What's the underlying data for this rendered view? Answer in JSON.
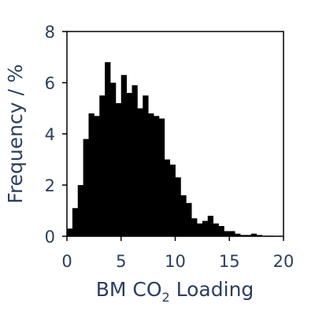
{
  "chart_data": {
    "type": "bar",
    "subtype": "histogram",
    "title": "",
    "xlabel_main": "BM CO",
    "xlabel_sub": "2",
    "xlabel_tail": " Loading",
    "ylabel": "Frequency / %",
    "xlim": [
      0,
      20
    ],
    "ylim": [
      0,
      8
    ],
    "x_ticks": [
      0,
      5,
      10,
      15,
      20
    ],
    "y_ticks": [
      0,
      2,
      4,
      6,
      8
    ],
    "bin_width": 0.5,
    "bin_starts": [
      0,
      0.5,
      1,
      1.5,
      2,
      2.5,
      3,
      3.5,
      4,
      4.5,
      5,
      5.5,
      6,
      6.5,
      7,
      7.5,
      8,
      8.5,
      9,
      9.5,
      10,
      10.5,
      11,
      11.5,
      12,
      12.5,
      13,
      13.5,
      14,
      14.5,
      15,
      15.5,
      16,
      16.5,
      17,
      17.5,
      18,
      18.5,
      19,
      19.5
    ],
    "values": [
      0.3,
      1.1,
      2.0,
      3.8,
      4.8,
      4.7,
      5.5,
      6.8,
      6.0,
      5.2,
      6.3,
      5.6,
      5.9,
      5.0,
      5.5,
      4.8,
      4.7,
      4.6,
      3.0,
      2.8,
      2.3,
      1.6,
      1.3,
      0.7,
      0.5,
      0.6,
      0.8,
      0.5,
      0.4,
      0.2,
      0.2,
      0.1,
      0.05,
      0.05,
      0.1,
      0.05,
      0.02,
      0.02,
      0.0,
      0.0
    ],
    "bar_color": "#000000",
    "axis_line_color": "#000000",
    "label_color": "#2a3f5f",
    "grid": false,
    "legend": "none"
  }
}
